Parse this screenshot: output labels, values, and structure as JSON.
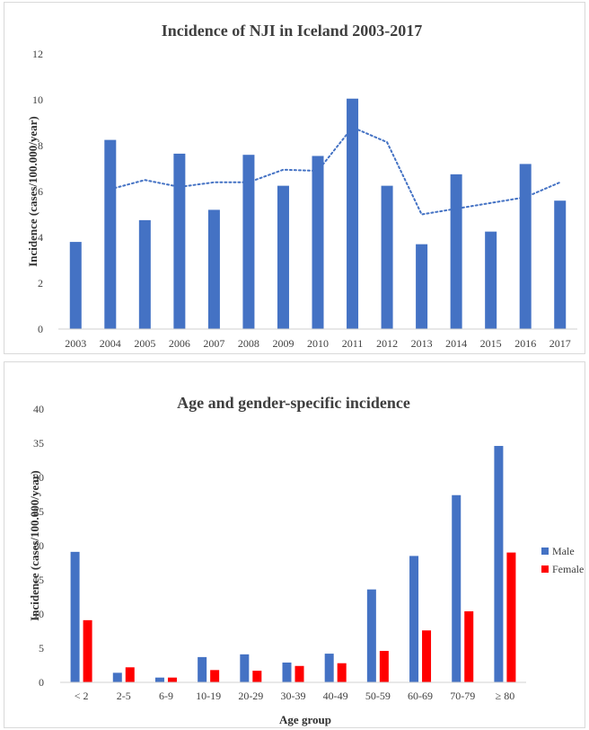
{
  "chart_data": [
    {
      "type": "bar",
      "title": "Incidence of NJI in Iceland 2003-2017",
      "xlabel": "",
      "ylabel": "Incidence (cases/100.000/year)",
      "ylim": [
        0,
        12
      ],
      "yticks": [
        0,
        2,
        4,
        6,
        8,
        10,
        12
      ],
      "categories": [
        "2003",
        "2004",
        "2005",
        "2006",
        "2007",
        "2008",
        "2009",
        "2010",
        "2011",
        "2012",
        "2013",
        "2014",
        "2015",
        "2016",
        "2017"
      ],
      "values": [
        3.8,
        8.25,
        4.75,
        7.65,
        5.2,
        7.6,
        6.25,
        7.55,
        10.05,
        6.25,
        3.7,
        6.75,
        4.25,
        7.2,
        5.6
      ],
      "trendline": {
        "style": "dotted",
        "kind": "2-period moving average",
        "values": [
          null,
          6.1,
          6.5,
          6.2,
          6.4,
          6.4,
          6.95,
          6.9,
          8.8,
          8.15,
          5.0,
          5.25,
          5.5,
          5.75,
          6.4
        ]
      },
      "colors": {
        "bar": "#4472C4",
        "trend": "#4472C4"
      },
      "grid": false,
      "legend": "none"
    },
    {
      "type": "bar",
      "title": "Age and gender-specific incidence",
      "xlabel": "Age group",
      "ylabel": "Incidence (cases/100.000/year)",
      "ylim": [
        0,
        40
      ],
      "yticks": [
        0,
        5,
        10,
        15,
        20,
        25,
        30,
        35,
        40
      ],
      "categories": [
        "< 2",
        "2-5",
        "6-9",
        "10-19",
        "20-29",
        "30-39",
        "40-49",
        "50-59",
        "60-69",
        "70-79",
        "≥ 80"
      ],
      "series": [
        {
          "name": "Male",
          "color": "#4472C4",
          "values": [
            19.1,
            1.4,
            0.7,
            3.7,
            4.1,
            2.9,
            4.2,
            13.6,
            18.5,
            27.4,
            34.6
          ]
        },
        {
          "name": "Female",
          "color": "#FF0000",
          "values": [
            9.1,
            2.2,
            0.7,
            1.8,
            1.7,
            2.4,
            2.8,
            4.6,
            7.6,
            10.4,
            19.0
          ]
        }
      ],
      "grid": false,
      "legend": "right"
    }
  ]
}
